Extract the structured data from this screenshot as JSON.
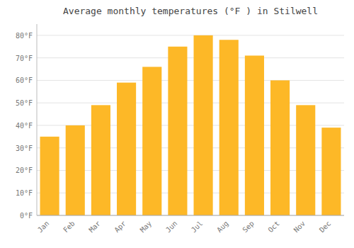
{
  "chart_data": {
    "type": "bar",
    "title": "Average monthly temperatures (°F ) in Stilwell",
    "categories": [
      "Jan",
      "Feb",
      "Mar",
      "Apr",
      "May",
      "Jun",
      "Jul",
      "Aug",
      "Sep",
      "Oct",
      "Nov",
      "Dec"
    ],
    "values": [
      35,
      40,
      49,
      59,
      66,
      75,
      80,
      78,
      71,
      60,
      49,
      39
    ],
    "color": "#FDB827",
    "ylim": [
      0,
      85
    ],
    "yticks": [
      {
        "value": 0,
        "label": "0°F"
      },
      {
        "value": 10,
        "label": "10°F"
      },
      {
        "value": 20,
        "label": "20°F"
      },
      {
        "value": 30,
        "label": "30°F"
      },
      {
        "value": 40,
        "label": "40°F"
      },
      {
        "value": 50,
        "label": "50°F"
      },
      {
        "value": 60,
        "label": "60°F"
      },
      {
        "value": 70,
        "label": "70°F"
      },
      {
        "value": 80,
        "label": "80°F"
      }
    ],
    "grid": true
  }
}
